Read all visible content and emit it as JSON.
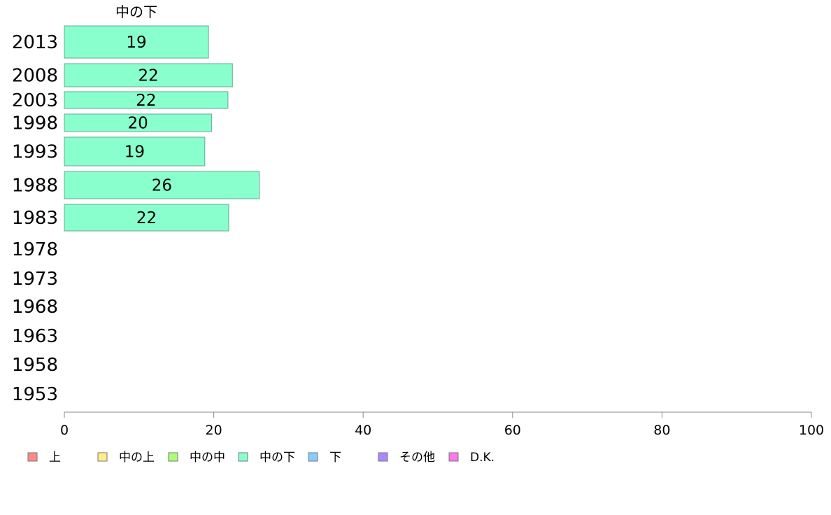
{
  "chart_data": {
    "type": "bar",
    "orientation": "horizontal",
    "title": "中の下",
    "categories": [
      "2013",
      "2008",
      "2003",
      "1998",
      "1993",
      "1988",
      "1983",
      "1978",
      "1973",
      "1968",
      "1963",
      "1958",
      "1953"
    ],
    "series": [
      {
        "name": "中の下",
        "color": "#88ffcc",
        "values": [
          19.3,
          22.5,
          21.9,
          19.7,
          18.8,
          26.1,
          22.0,
          null,
          null,
          null,
          null,
          null,
          null
        ],
        "labels": [
          "19",
          "22",
          "22",
          "20",
          "19",
          "26",
          "22",
          "",
          "",
          "",
          "",
          "",
          ""
        ]
      }
    ],
    "xlim": [
      0,
      100
    ],
    "xticks": [
      "0",
      "20",
      "40",
      "60",
      "80",
      "100"
    ],
    "grid": false,
    "legend": {
      "placement": "bottom-left",
      "items": [
        {
          "label": "上",
          "color": "#ff8888"
        },
        {
          "label": "中の上",
          "color": "#ffee88"
        },
        {
          "label": "中の中",
          "color": "#aaff77"
        },
        {
          "label": "中の下",
          "color": "#88ffcc"
        },
        {
          "label": "下",
          "color": "#88ccff"
        },
        {
          "label": "その他",
          "color": "#aa88ff"
        },
        {
          "label": "D.K.",
          "color": "#ff77ee"
        }
      ]
    }
  }
}
